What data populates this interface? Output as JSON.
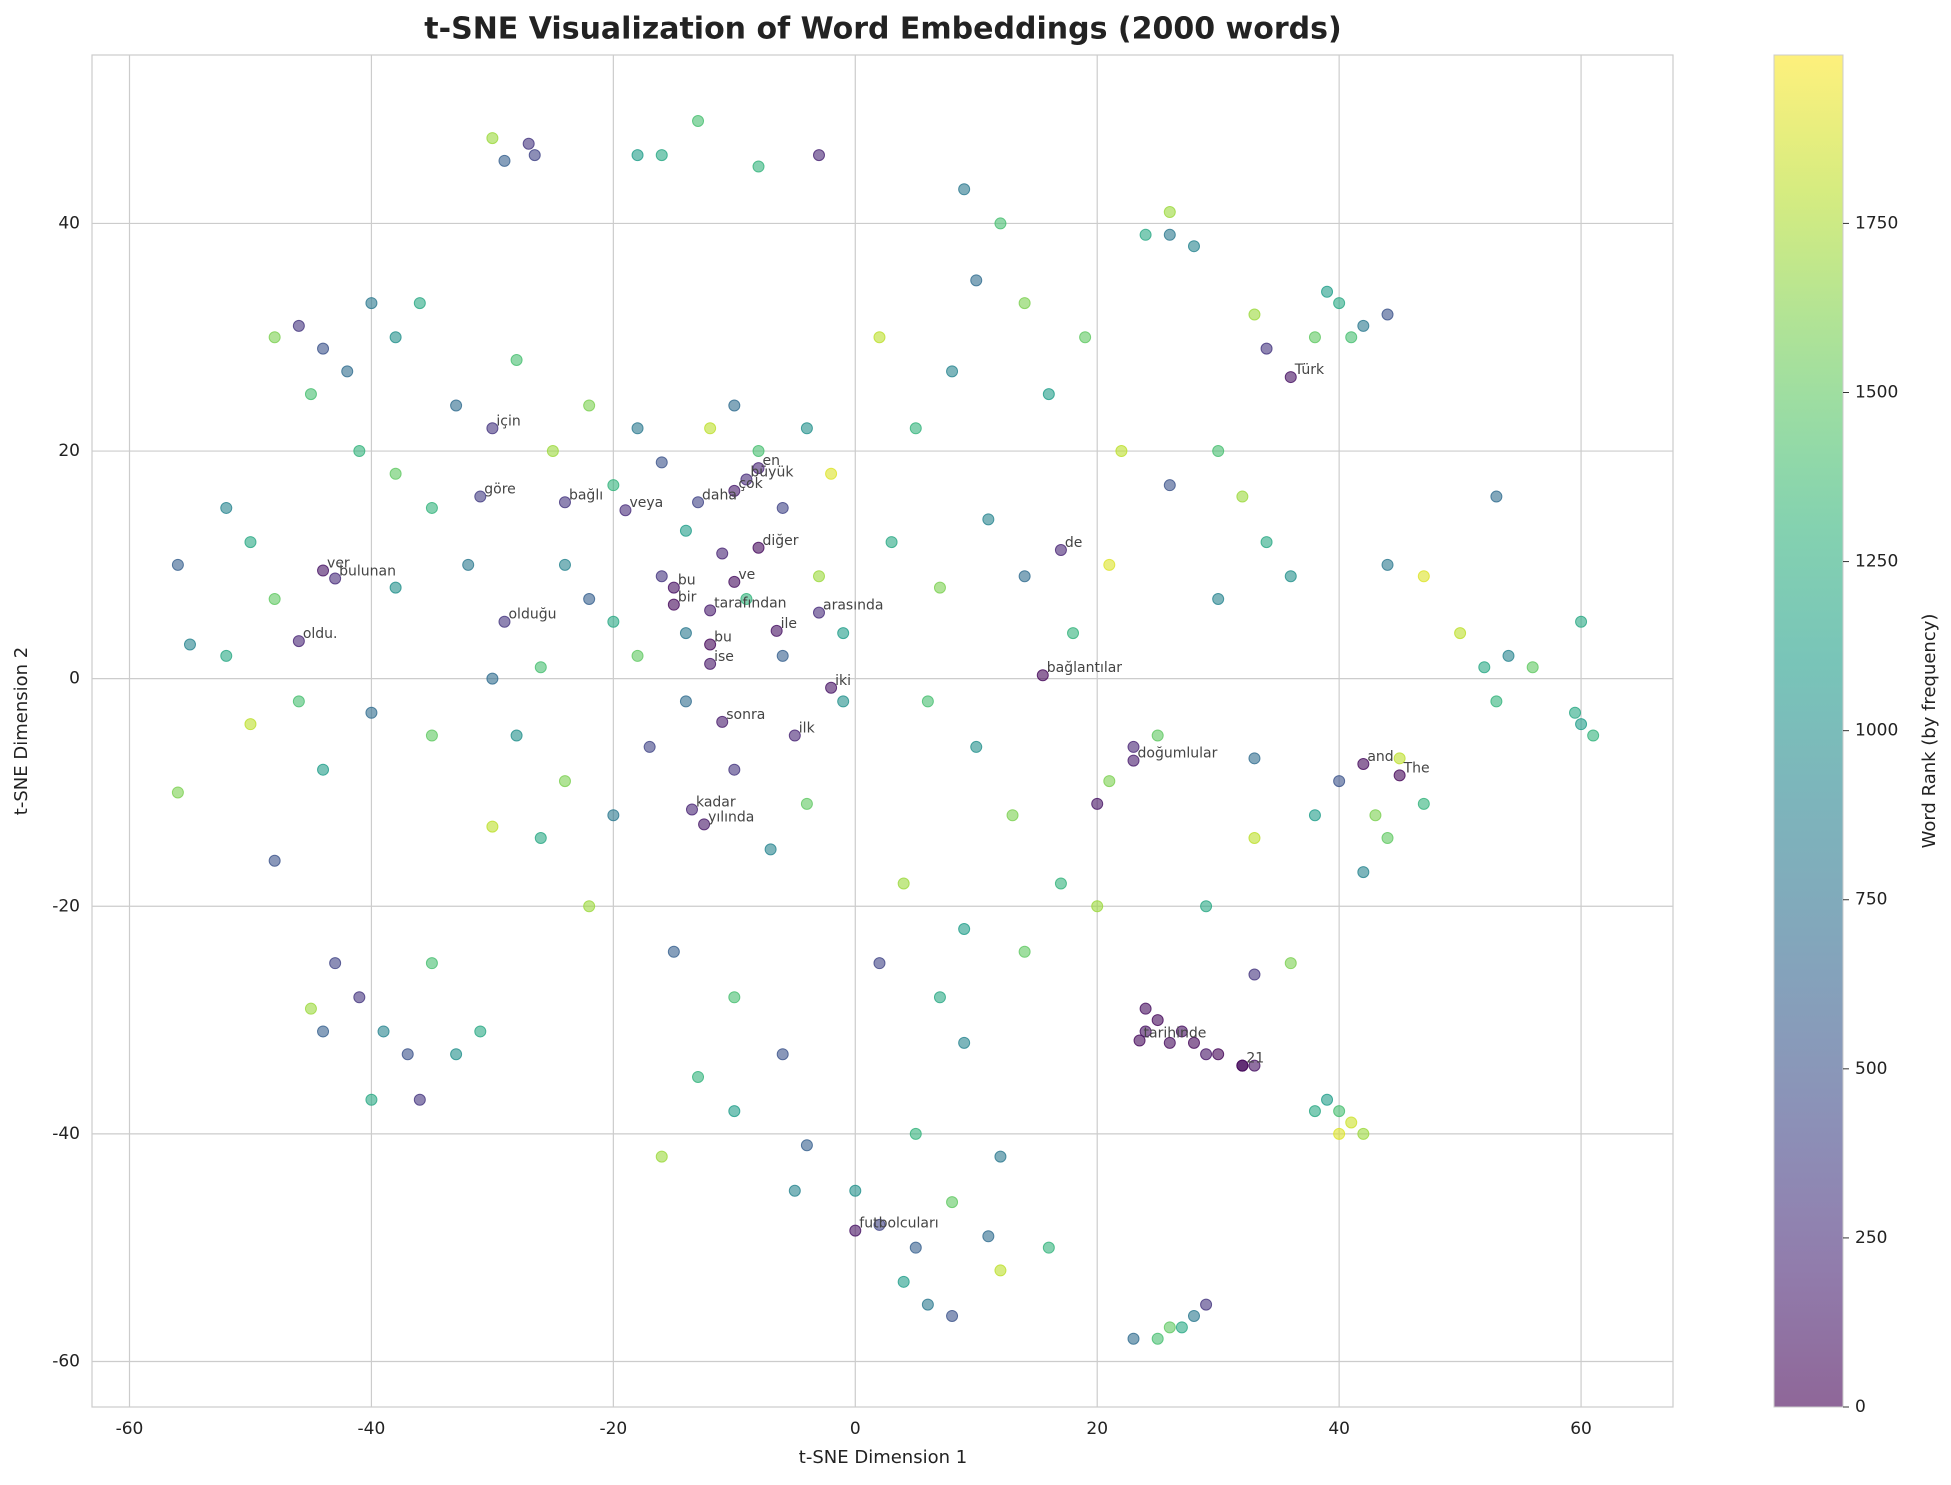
{
  "chart_data": {
    "type": "scatter",
    "title": "t-SNE Visualization of Word Embeddings (2000 words)",
    "xlabel": "t-SNE Dimension 1",
    "ylabel": "t-SNE Dimension 2",
    "colormap": "viridis",
    "colorbar_label": "Word Rank (by frequency)",
    "clim": [
      0,
      1999
    ],
    "colorbar_ticks": [
      0,
      250,
      500,
      750,
      1000,
      1250,
      1500,
      1750
    ],
    "xlim": [
      -63.1,
      67.6
    ],
    "ylim": [
      -64,
      54.8
    ],
    "xticks": [
      -60,
      -40,
      -20,
      0,
      20,
      40,
      60
    ],
    "yticks": [
      -60,
      -40,
      -20,
      0,
      20,
      40
    ],
    "grid": true,
    "x": [
      -30,
      -8,
      -9,
      -10,
      -13,
      -31,
      -24,
      -19,
      -8,
      17,
      -44,
      -43,
      -15,
      -10,
      -15,
      -12,
      -29,
      -3,
      -6.5,
      -46,
      -12,
      -12,
      15.5,
      -2,
      -11,
      -5,
      23,
      42,
      45,
      -13.5,
      -12.5,
      36,
      23.5,
      32,
      0,
      -30,
      -29,
      -27,
      -26.5,
      -18,
      -16,
      -13,
      -8,
      -3,
      -46,
      -44,
      -42,
      -45,
      -40,
      -38,
      -36,
      -48,
      -41,
      -38,
      -33,
      -56,
      -52,
      -50,
      -55,
      -52,
      -48,
      -56,
      -50,
      -46,
      -44,
      -40,
      -48,
      -43,
      -41,
      -44,
      -39,
      -45,
      -37,
      -35,
      -33,
      -36,
      -40,
      -31,
      -25,
      -22,
      -20,
      -18,
      -16,
      -14,
      -12,
      -10,
      -8,
      -6,
      -4,
      -2,
      -24,
      -22,
      -20,
      -18,
      -16,
      -14,
      -11,
      -9,
      -6,
      -3,
      -1,
      -26,
      -28,
      -24,
      -20,
      -17,
      -14,
      -10,
      -7,
      -4,
      -1,
      -26,
      -30,
      -22,
      -15,
      -10,
      -6,
      -13,
      -10,
      -16,
      -4,
      -35,
      -32,
      -30,
      -35,
      -38,
      -28,
      2,
      5,
      8,
      10,
      12,
      9,
      14,
      16,
      19,
      22,
      26,
      3,
      7,
      11,
      14,
      18,
      21,
      6,
      10,
      13,
      17,
      4,
      9,
      14,
      20,
      2,
      7,
      9,
      5,
      12,
      2,
      5,
      8,
      11,
      12,
      6,
      4,
      8,
      16,
      -5,
      0,
      23,
      25,
      26,
      27,
      28,
      29,
      24,
      25,
      24,
      26,
      28,
      30,
      32,
      33,
      27,
      29,
      39,
      40,
      41,
      40,
      42,
      38,
      38,
      40,
      42,
      44,
      41,
      39,
      34,
      33,
      50,
      52,
      54,
      53,
      56,
      53,
      47,
      44,
      60,
      61,
      59.5,
      60,
      40,
      43,
      45,
      47,
      44,
      38,
      42,
      30,
      32,
      34,
      36,
      30,
      33,
      29,
      33,
      36,
      33,
      24,
      26,
      26,
      28,
      21,
      23,
      25,
      20
    ],
    "y": [
      22,
      18.5,
      17.5,
      16.5,
      15.5,
      16,
      15.5,
      14.8,
      11.5,
      11.3,
      9.5,
      8.8,
      8,
      8.5,
      6.5,
      6,
      5,
      5.8,
      4.2,
      3.3,
      3,
      1.3,
      0.3,
      -0.8,
      -3.8,
      -5,
      -7.2,
      -7.5,
      -8.5,
      -11.5,
      -12.8,
      26.5,
      -31.8,
      -34,
      -48.5,
      47.5,
      45.5,
      47,
      46,
      46,
      46,
      49,
      45,
      46,
      31,
      29,
      27,
      25,
      33,
      30,
      33,
      30,
      20,
      18,
      24,
      10,
      15,
      12,
      3,
      2,
      7,
      -10,
      -4,
      -2,
      -8,
      -3,
      -16,
      -25,
      -28,
      -31,
      -31,
      -29,
      -33,
      -25,
      -33,
      -37,
      -37,
      -31,
      20,
      24,
      17,
      22,
      19,
      13,
      22,
      24,
      20,
      15,
      22,
      18,
      10,
      7,
      5,
      2,
      9,
      4,
      11,
      7,
      2,
      9,
      4,
      1,
      -5,
      -9,
      -12,
      -6,
      -2,
      -8,
      -15,
      -11,
      -2,
      -14,
      -13,
      -20,
      -24,
      -28,
      -33,
      -35,
      -38,
      -42,
      -41,
      15,
      10,
      0,
      -5,
      8,
      28,
      30,
      22,
      27,
      35,
      40,
      43,
      33,
      25,
      30,
      20,
      17,
      12,
      8,
      14,
      9,
      4,
      10,
      -2,
      -6,
      -12,
      -18,
      -18,
      -22,
      -24,
      -20,
      -25,
      -28,
      -32,
      -40,
      -42,
      -48,
      -50,
      -46,
      -49,
      -52,
      -55,
      -53,
      -56,
      -50,
      -45,
      -45,
      -58,
      -58,
      -57,
      -57,
      -56,
      -55,
      -29,
      -30,
      -31,
      -32,
      -32,
      -33,
      -34,
      -34,
      -31,
      -33,
      -37,
      -38,
      -39,
      -40,
      -40,
      -38,
      30,
      33,
      31,
      32,
      30,
      34,
      29,
      32,
      4,
      1,
      2,
      -2,
      1,
      16,
      9,
      10,
      -4,
      -5,
      -3,
      5,
      -9,
      -12,
      -7,
      -11,
      -14,
      -12,
      -17,
      20,
      16,
      12,
      9,
      7,
      -7,
      -20,
      -14,
      -25,
      -26,
      39,
      39,
      41,
      38,
      -9,
      -6,
      -5,
      -11
    ],
    "color_values": [
      300,
      200,
      250,
      150,
      400,
      350,
      300,
      250,
      50,
      200,
      100,
      250,
      80,
      60,
      40,
      150,
      300,
      250,
      90,
      200,
      30,
      120,
      30,
      100,
      150,
      200,
      150,
      50,
      30,
      200,
      120,
      80,
      40,
      60,
      90,
      1700,
      600,
      300,
      400,
      1100,
      1200,
      1400,
      1300,
      200,
      300,
      500,
      700,
      1400,
      800,
      1000,
      1200,
      1600,
      1300,
      1500,
      700,
      600,
      900,
      1200,
      900,
      1200,
      1500,
      1600,
      1800,
      1400,
      1100,
      700,
      500,
      400,
      300,
      600,
      900,
      1700,
      500,
      1400,
      1000,
      300,
      1200,
      1200,
      1700,
      1600,
      1300,
      800,
      500,
      1100,
      1800,
      700,
      1400,
      400,
      1000,
      1900,
      900,
      600,
      1200,
      1500,
      300,
      800,
      200,
      1300,
      600,
      1700,
      1100,
      1400,
      1000,
      1600,
      800,
      400,
      700,
      300,
      900,
      1500,
      1000,
      1200,
      1800,
      1700,
      600,
      1400,
      500,
      1300,
      1100,
      1700,
      600,
      1300,
      800,
      700,
      1500,
      1000,
      1400,
      1800,
      1300,
      900,
      700,
      1400,
      800,
      1600,
      1100,
      1500,
      1800,
      500,
      1200,
      1600,
      900,
      700,
      1300,
      1900,
      1400,
      1000,
      1600,
      1300,
      1700,
      1100,
      1500,
      1700,
      400,
      1200,
      900,
      1300,
      800,
      400,
      600,
      1500,
      700,
      1800,
      800,
      1100,
      500,
      1300,
      900,
      1000,
      700,
      1400,
      1500,
      1200,
      800,
      300,
      60,
      40,
      80,
      50,
      30,
      20,
      40,
      90,
      70,
      110,
      1100,
      1400,
      1850,
      1900,
      1700,
      1200,
      1500,
      1200,
      800,
      500,
      1400,
      1100,
      300,
      1700,
      1800,
      1200,
      900,
      1300,
      1500,
      700,
      1900,
      800,
      1100,
      1300,
      1200,
      1200,
      500,
      1600,
      1800,
      1300,
      1500,
      1100,
      900,
      1400,
      1700,
      1200,
      1000,
      900,
      700,
      1200,
      1800,
      1600,
      300,
      1200,
      800,
      1700,
      900,
      1600,
      200,
      1500,
      100
    ],
    "annotations": [
      {
        "text": "için",
        "x": -30,
        "y": 22
      },
      {
        "text": "en",
        "x": -8,
        "y": 18.5
      },
      {
        "text": "büyük",
        "x": -9,
        "y": 17.5
      },
      {
        "text": "çok",
        "x": -10,
        "y": 16.5
      },
      {
        "text": "daha",
        "x": -13,
        "y": 15.5
      },
      {
        "text": "göre",
        "x": -31,
        "y": 16
      },
      {
        "text": "bağlı",
        "x": -24,
        "y": 15.5
      },
      {
        "text": "veya",
        "x": -19,
        "y": 14.8
      },
      {
        "text": "diğer",
        "x": -8,
        "y": 11.5
      },
      {
        "text": "de",
        "x": 17,
        "y": 11.3
      },
      {
        "text": "ver",
        "x": -44,
        "y": 9.5
      },
      {
        "text": "bulunan",
        "x": -43,
        "y": 8.8
      },
      {
        "text": "bu",
        "x": -15,
        "y": 8
      },
      {
        "text": "ve",
        "x": -10,
        "y": 8.5
      },
      {
        "text": "bir",
        "x": -15,
        "y": 6.5
      },
      {
        "text": "tarafından",
        "x": -12,
        "y": 6
      },
      {
        "text": "olduğu",
        "x": -29,
        "y": 5
      },
      {
        "text": "arasında",
        "x": -3,
        "y": 5.8
      },
      {
        "text": "ile",
        "x": -6.5,
        "y": 4.2
      },
      {
        "text": "oldu.",
        "x": -46,
        "y": 3.3
      },
      {
        "text": "bu",
        "x": -12,
        "y": 3
      },
      {
        "text": "ise",
        "x": -12,
        "y": 1.3
      },
      {
        "text": "bağlantılar",
        "x": 15.5,
        "y": 0.3
      },
      {
        "text": "iki",
        "x": -2,
        "y": -0.8
      },
      {
        "text": "sonra",
        "x": -11,
        "y": -3.8
      },
      {
        "text": "ilk",
        "x": -5,
        "y": -5
      },
      {
        "text": "doğumlular",
        "x": 23,
        "y": -7.2
      },
      {
        "text": "and",
        "x": 42,
        "y": -7.5
      },
      {
        "text": "The",
        "x": 45,
        "y": -8.5
      },
      {
        "text": "kadar",
        "x": -13.5,
        "y": -11.5
      },
      {
        "text": "yılında",
        "x": -12.5,
        "y": -12.8
      },
      {
        "text": "Türk",
        "x": 36,
        "y": 26.5
      },
      {
        "text": "tarihinde",
        "x": 23.5,
        "y": -31.8
      },
      {
        "text": "21",
        "x": 32,
        "y": -34
      },
      {
        "text": "futbolcuları",
        "x": 0,
        "y": -48.5
      }
    ]
  }
}
